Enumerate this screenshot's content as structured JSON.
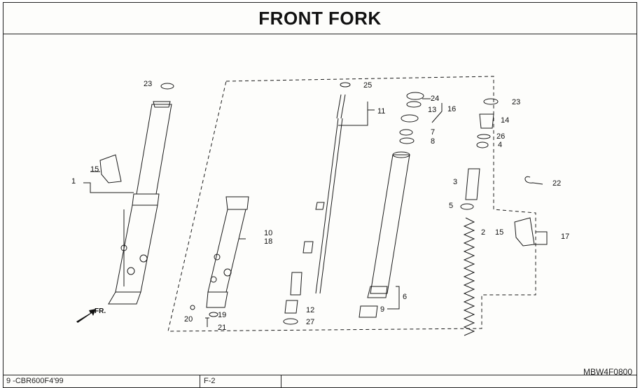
{
  "title": "FRONT FORK",
  "diagram_code": "MBW4F0800",
  "footer": {
    "reference": "9 -CBR600F4'99",
    "page": "F-2"
  },
  "direction_label": "FR.",
  "callouts": [
    "1",
    "2",
    "3",
    "4",
    "5",
    "6",
    "7",
    "8",
    "9",
    "10",
    "11",
    "12",
    "13",
    "14",
    "15",
    "16",
    "17",
    "18",
    "19",
    "20",
    "21",
    "22",
    "23",
    "24",
    "25",
    "26",
    "27"
  ],
  "callouts_repeated": {
    "15": "15",
    "23": "23"
  }
}
